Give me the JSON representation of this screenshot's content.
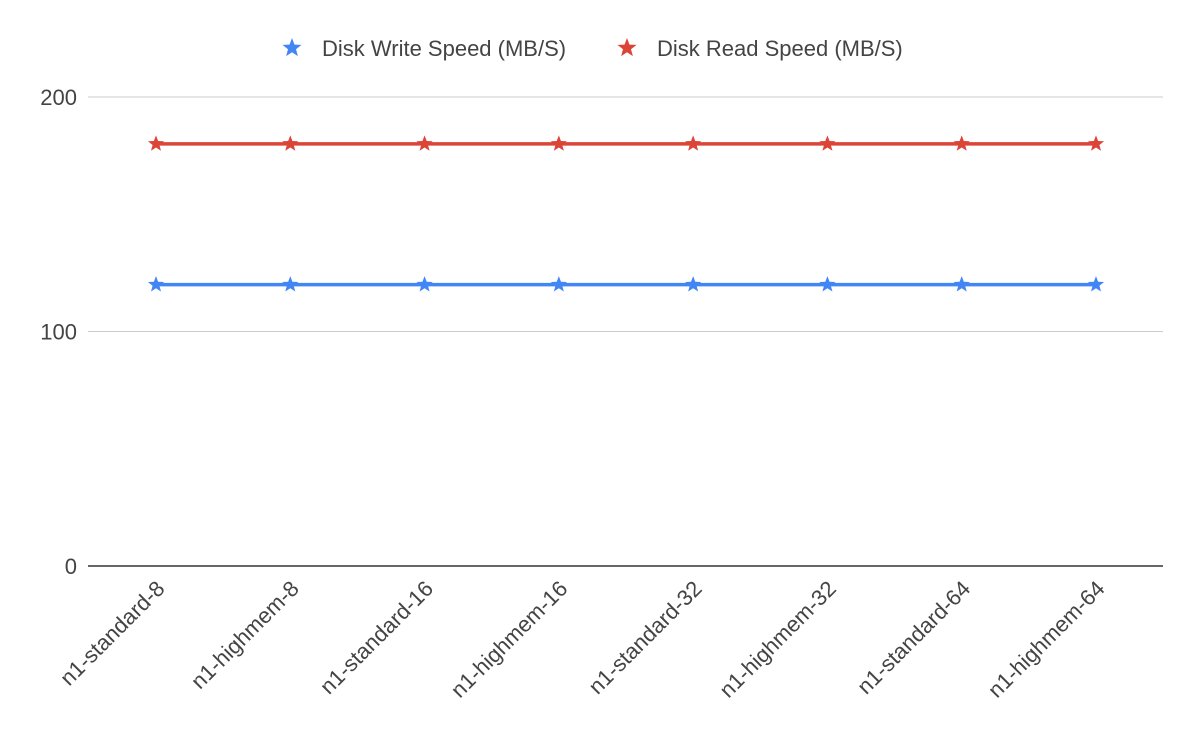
{
  "chart_data": {
    "type": "line",
    "title": "",
    "xlabel": "",
    "ylabel": "",
    "categories": [
      "n1-standard-8",
      "n1-highmem-8",
      "n1-standard-16",
      "n1-highmem-16",
      "n1-standard-32",
      "n1-highmem-32",
      "n1-standard-64",
      "n1-highmem-64"
    ],
    "series": [
      {
        "name": "Disk Write Speed (MB/S)",
        "color": "#4285f4",
        "marker": "star",
        "values": [
          120,
          120,
          120,
          120,
          120,
          120,
          120,
          120
        ]
      },
      {
        "name": "Disk Read Speed (MB/S)",
        "color": "#db4437",
        "marker": "star",
        "values": [
          180,
          180,
          180,
          180,
          180,
          180,
          180,
          180
        ]
      }
    ],
    "ylim": [
      0,
      200
    ],
    "yticks": [
      "0",
      "100",
      "200"
    ],
    "grid": true,
    "legend_position": "top-center"
  }
}
